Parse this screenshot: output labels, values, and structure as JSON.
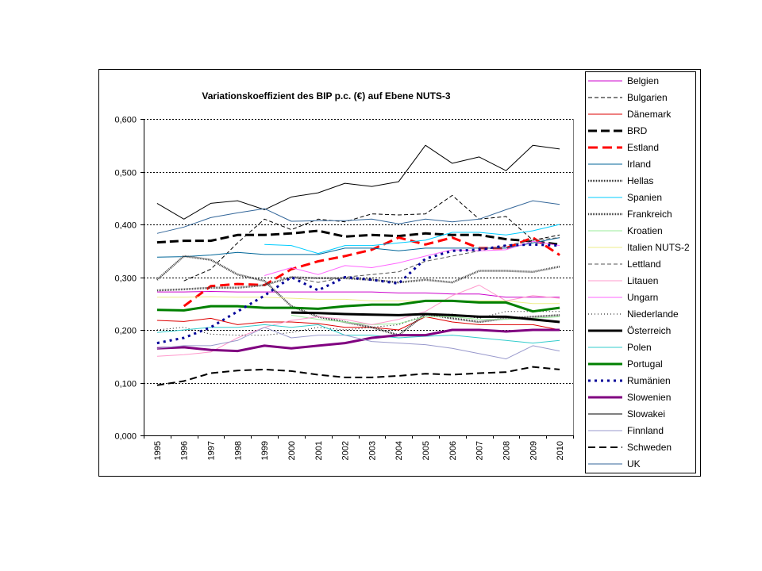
{
  "chart_data": {
    "type": "line",
    "title": "Variationskoeffizient des BIP p.c. (€) auf Ebene NUTS-3",
    "categories": [
      "1995",
      "1996",
      "1997",
      "1998",
      "1999",
      "2000",
      "2001",
      "2002",
      "2003",
      "2004",
      "2005",
      "2006",
      "2007",
      "2008",
      "2009",
      "2010"
    ],
    "y_ticks": [
      0,
      0.1,
      0.2,
      0.3,
      0.4,
      0.5,
      0.6
    ],
    "y_tick_labels": [
      "0,000",
      "0,100",
      "0,200",
      "0,300",
      "0,400",
      "0,500",
      "0,600"
    ],
    "ylim": [
      0,
      0.6
    ],
    "grid": true,
    "legend": "right",
    "series": [
      {
        "name": "Belgien",
        "color": "#CC00CC",
        "values": [
          0.272,
          0.272,
          0.273,
          0.272,
          0.272,
          0.272,
          0.272,
          0.272,
          0.272,
          0.27,
          0.27,
          0.268,
          0.268,
          0.262,
          0.262,
          0.262
        ]
      },
      {
        "name": "Bulgarien",
        "color": "#000000",
        "values": [
          null,
          0.293,
          0.315,
          0.365,
          0.41,
          0.39,
          0.41,
          0.405,
          0.42,
          0.418,
          0.42,
          0.455,
          0.41,
          0.415,
          0.37,
          0.38
        ]
      },
      {
        "name": "Dänemark",
        "color": "#DD0000",
        "values": [
          0.218,
          0.216,
          0.222,
          0.21,
          0.215,
          0.215,
          0.212,
          0.205,
          0.205,
          0.2,
          0.225,
          0.215,
          0.21,
          0.21,
          0.21,
          0.2
        ]
      },
      {
        "name": "BRD",
        "color": "#000000",
        "values": [
          0.366,
          0.369,
          0.369,
          0.38,
          0.38,
          0.383,
          0.388,
          0.377,
          0.38,
          0.378,
          0.383,
          0.38,
          0.38,
          0.372,
          0.368,
          0.362
        ]
      },
      {
        "name": "Estland",
        "color": "#FF0000",
        "values": [
          null,
          0.245,
          0.283,
          0.287,
          0.285,
          0.315,
          0.33,
          0.34,
          0.352,
          0.375,
          0.362,
          0.375,
          0.355,
          0.355,
          0.375,
          0.342
        ]
      },
      {
        "name": "Irland",
        "color": "#006699",
        "values": [
          0.338,
          0.339,
          0.342,
          0.347,
          0.343,
          0.343,
          0.343,
          0.355,
          0.355,
          0.35,
          0.355,
          0.355,
          0.355,
          0.355,
          0.365,
          0.375
        ]
      },
      {
        "name": "Hellas",
        "color": "#333333",
        "values": [
          0.295,
          0.34,
          0.333,
          0.305,
          0.293,
          0.245,
          0.225,
          0.215,
          0.205,
          0.19,
          0.23,
          0.222,
          0.215,
          0.222,
          0.225,
          0.228
        ]
      },
      {
        "name": "Spanien",
        "color": "#00CCFF",
        "values": [
          null,
          null,
          null,
          null,
          0.362,
          0.36,
          0.345,
          0.36,
          0.36,
          0.365,
          0.37,
          0.385,
          0.385,
          0.38,
          0.388,
          0.4
        ]
      },
      {
        "name": "Frankreich",
        "color": "#444444",
        "values": [
          0.275,
          0.277,
          0.28,
          0.28,
          0.285,
          0.3,
          0.298,
          0.298,
          0.295,
          0.29,
          0.295,
          0.29,
          0.312,
          0.312,
          0.31,
          0.32
        ]
      },
      {
        "name": "Kroatien",
        "color": "#99EE99",
        "values": [
          null,
          null,
          null,
          null,
          null,
          0.228,
          0.22,
          0.215,
          0.21,
          0.212,
          0.225,
          0.225,
          0.22,
          0.22,
          0.222,
          0.225
        ]
      },
      {
        "name": "Italien NUTS-2",
        "color": "#EEEE88",
        "values": [
          0.262,
          0.262,
          0.263,
          0.262,
          0.262,
          0.26,
          0.258,
          0.258,
          0.255,
          0.255,
          0.255,
          0.255,
          0.255,
          0.255,
          0.25,
          0.25
        ]
      },
      {
        "name": "Lettland",
        "color": "#555555",
        "values": [
          null,
          null,
          null,
          null,
          null,
          0.3,
          0.29,
          0.3,
          0.305,
          0.31,
          0.33,
          0.34,
          0.35,
          0.36,
          0.37,
          0.375
        ]
      },
      {
        "name": "Litauen",
        "color": "#FF99CC",
        "values": [
          0.15,
          0.153,
          0.158,
          0.185,
          0.205,
          0.218,
          0.225,
          0.22,
          0.21,
          0.22,
          0.235,
          0.265,
          0.285,
          0.255,
          0.265,
          0.26
        ]
      },
      {
        "name": "Ungarn",
        "color": "#FF66FF",
        "values": [
          null,
          null,
          null,
          null,
          0.303,
          0.318,
          0.305,
          0.322,
          0.318,
          0.327,
          0.34,
          0.352,
          0.35,
          0.352,
          0.368,
          0.36
        ]
      },
      {
        "name": "Niederlande",
        "color": "#000000",
        "values": [
          0.2,
          0.205,
          0.192,
          0.19,
          0.19,
          0.195,
          0.205,
          0.2,
          0.205,
          0.21,
          0.228,
          0.23,
          0.222,
          0.235,
          0.235,
          0.235
        ]
      },
      {
        "name": "Österreich",
        "color": "#000000",
        "values": [
          null,
          null,
          null,
          null,
          null,
          0.233,
          0.232,
          0.23,
          0.229,
          0.228,
          0.23,
          0.228,
          0.225,
          0.225,
          0.22,
          0.215
        ]
      },
      {
        "name": "Polen",
        "color": "#33CCCC",
        "values": [
          0.195,
          0.2,
          0.205,
          0.205,
          0.21,
          0.205,
          0.21,
          0.19,
          0.19,
          0.185,
          0.188,
          0.19,
          0.185,
          0.18,
          0.175,
          0.18
        ]
      },
      {
        "name": "Portugal",
        "color": "#008000",
        "values": [
          0.238,
          0.237,
          0.245,
          0.245,
          0.242,
          0.242,
          0.24,
          0.245,
          0.248,
          0.248,
          0.255,
          0.255,
          0.252,
          0.252,
          0.235,
          0.242
        ]
      },
      {
        "name": "Rumänien",
        "color": "#000099",
        "values": [
          0.175,
          0.185,
          0.205,
          0.235,
          0.265,
          0.3,
          0.275,
          0.3,
          0.295,
          0.288,
          0.335,
          0.35,
          0.352,
          0.36,
          0.362,
          0.36
        ]
      },
      {
        "name": "Slowenien",
        "color": "#800080",
        "values": [
          0.165,
          0.167,
          0.162,
          0.16,
          0.17,
          0.165,
          0.17,
          0.175,
          0.185,
          0.19,
          0.19,
          0.2,
          0.2,
          0.197,
          0.2,
          0.2
        ]
      },
      {
        "name": "Slowakei",
        "color": "#000000",
        "values": [
          0.44,
          0.41,
          0.44,
          0.445,
          0.428,
          0.452,
          0.46,
          0.478,
          0.472,
          0.481,
          0.55,
          0.516,
          0.528,
          0.502,
          0.55,
          0.543
        ]
      },
      {
        "name": "Finnland",
        "color": "#9999CC",
        "values": [
          0.165,
          0.17,
          0.17,
          0.18,
          0.205,
          0.185,
          0.19,
          0.19,
          0.178,
          0.175,
          0.172,
          0.165,
          0.155,
          0.145,
          0.17,
          0.16
        ]
      },
      {
        "name": "Schweden",
        "color": "#000000",
        "values": [
          0.095,
          0.103,
          0.118,
          0.123,
          0.125,
          0.122,
          0.115,
          0.11,
          0.11,
          0.113,
          0.117,
          0.115,
          0.118,
          0.12,
          0.13,
          0.125
        ]
      },
      {
        "name": "UK",
        "color": "#336699",
        "values": [
          0.383,
          0.395,
          0.413,
          0.422,
          0.43,
          0.406,
          0.407,
          0.407,
          0.41,
          0.401,
          0.41,
          0.405,
          0.41,
          0.428,
          0.445,
          0.438
        ]
      }
    ]
  }
}
